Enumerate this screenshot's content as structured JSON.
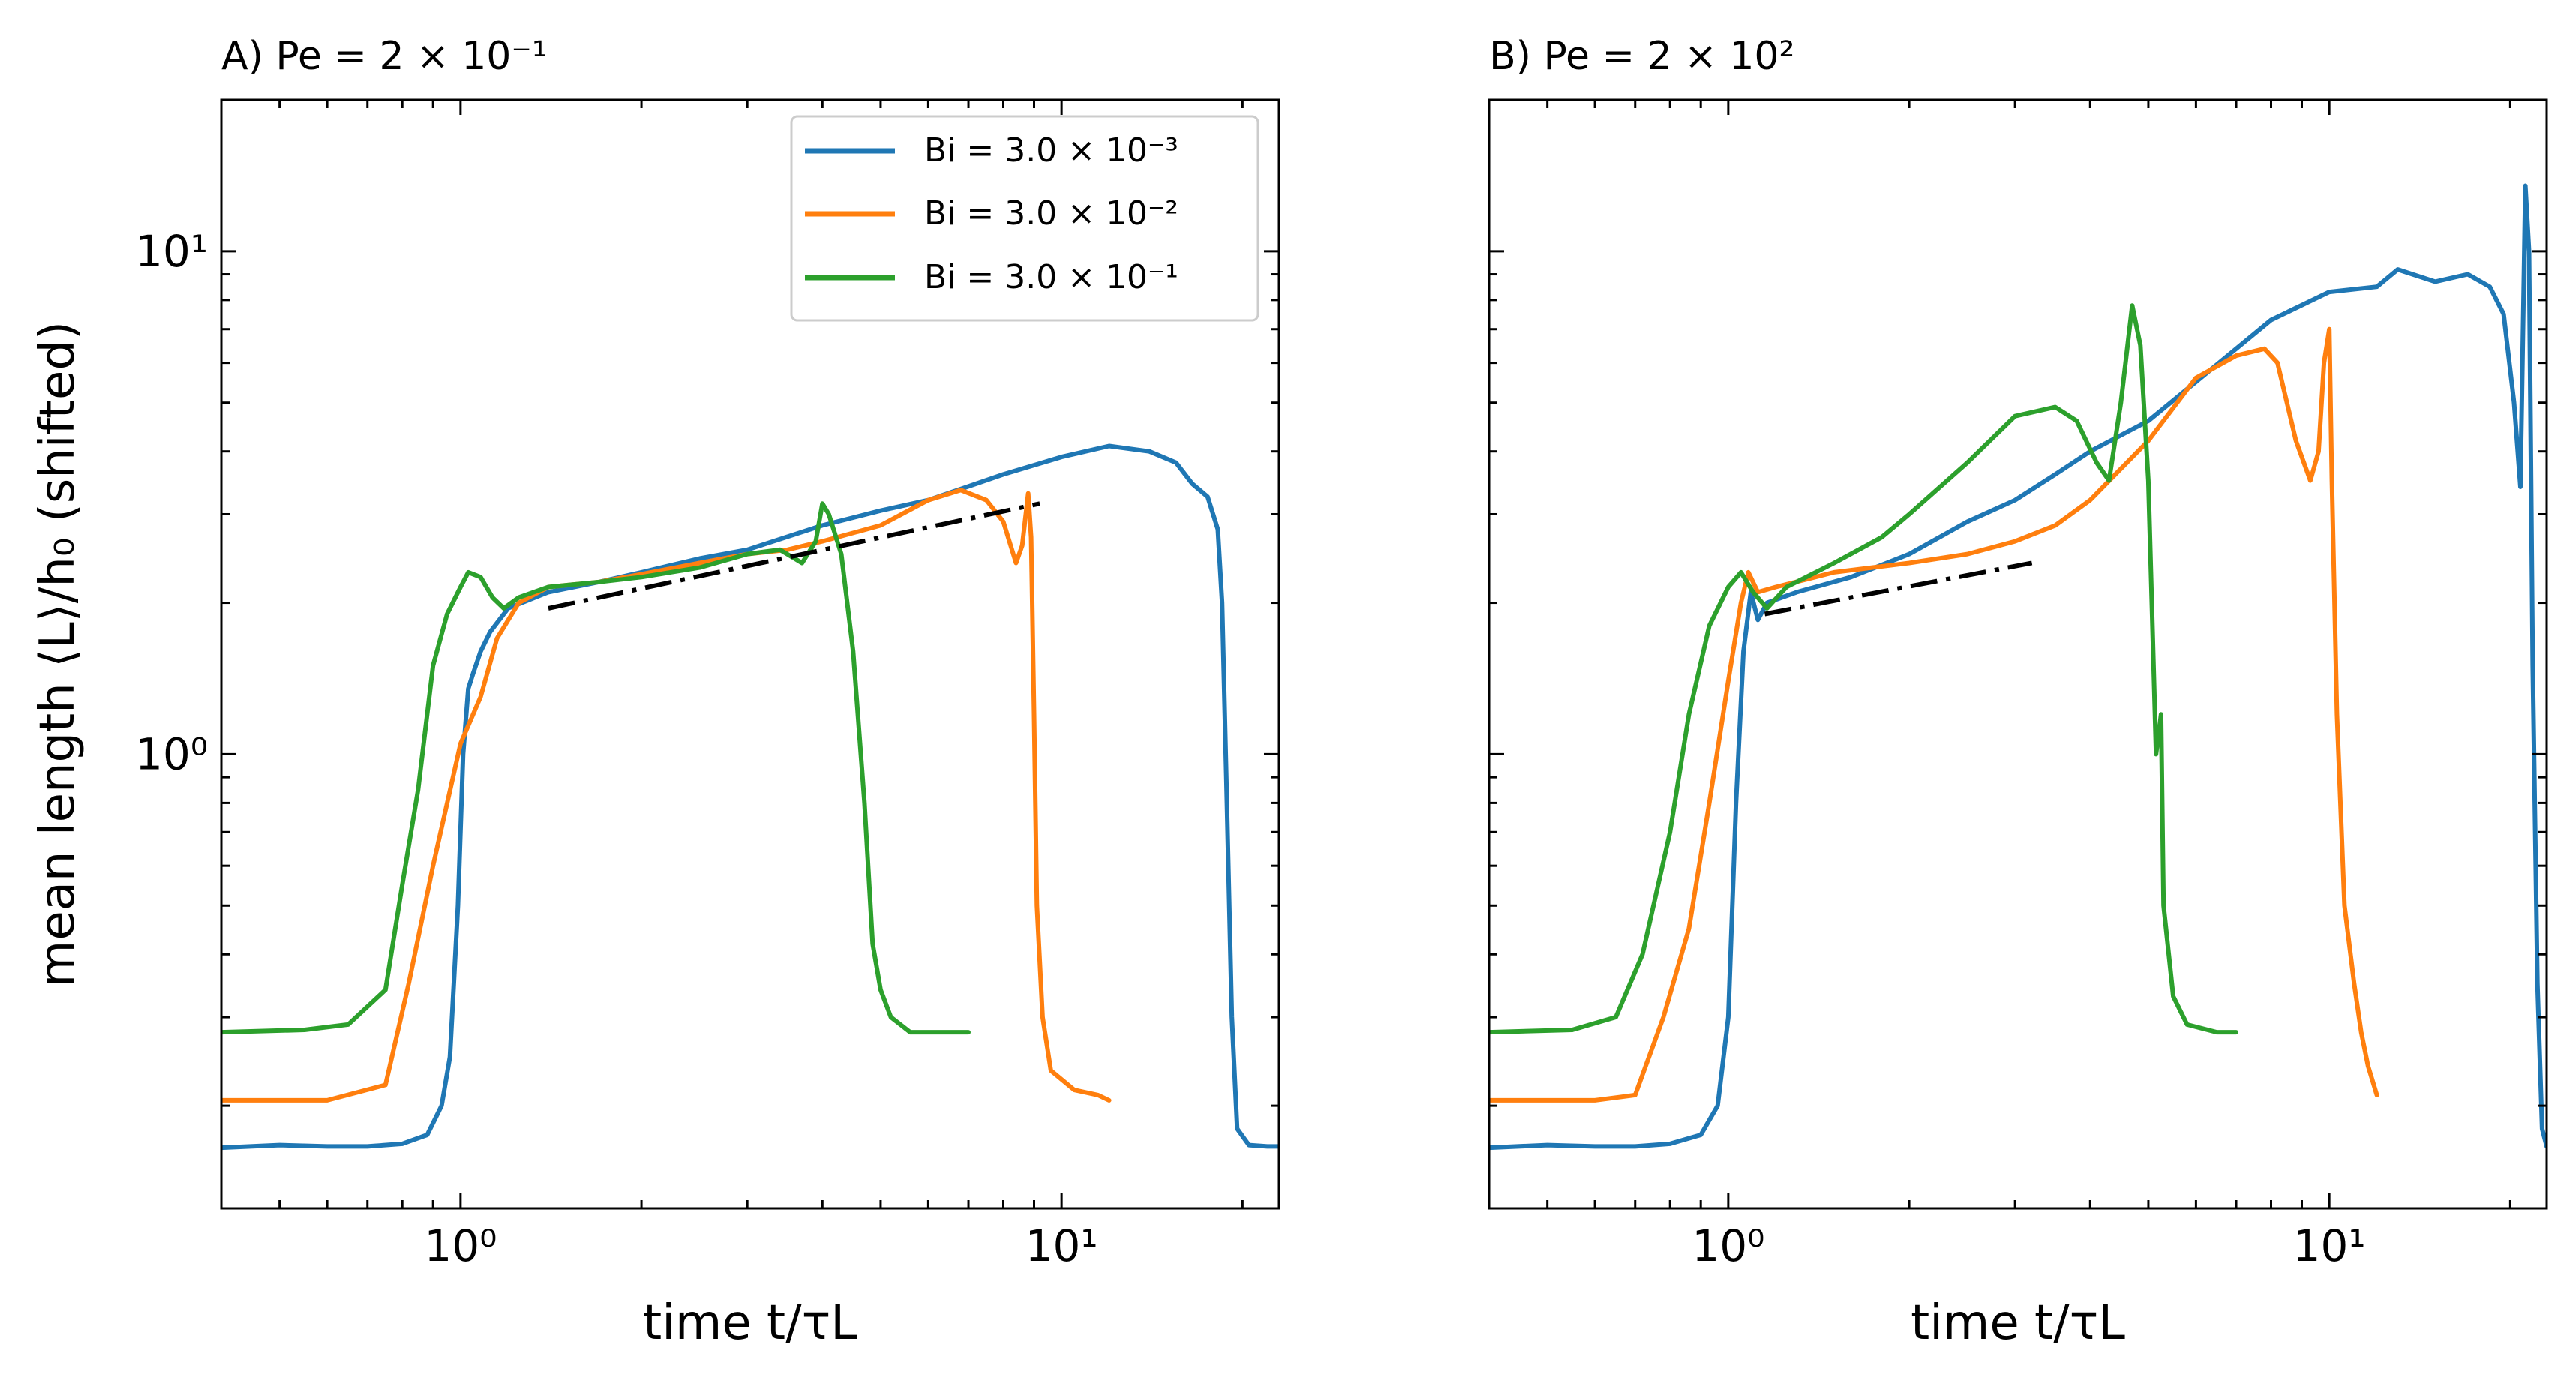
{
  "figure": {
    "shared_ylabel": "mean length ⟨L⟩/h₀ (shifted)",
    "legend": [
      "Bi = 3.0 × 10⁻³",
      "Bi = 3.0 × 10⁻²",
      "Bi = 3.0 × 10⁻¹"
    ]
  },
  "colors": {
    "series": [
      "#1f77b4",
      "#ff7f0e",
      "#2ca02c"
    ],
    "guide": "#000000"
  },
  "chart_data": [
    {
      "type": "line",
      "panel": "A",
      "title": "A) Pe = 2 × 10⁻¹",
      "xlabel": "time t/τL",
      "ylabel": "mean length ⟨L⟩/h₀ (shifted)",
      "xscale": "log",
      "yscale": "log",
      "xlim": [
        0.4,
        23
      ],
      "ylim": [
        0.125,
        20
      ],
      "xticks": [
        {
          "v": 1,
          "label": "10⁰"
        },
        {
          "v": 10,
          "label": "10¹"
        }
      ],
      "yticks": [
        {
          "v": 1,
          "label": "10⁰"
        },
        {
          "v": 10,
          "label": "10¹"
        }
      ],
      "legend_loc": "upper right",
      "series": [
        {
          "name": "Bi = 3.0 × 10⁻³",
          "points": [
            [
              0.4,
              0.165
            ],
            [
              0.5,
              0.167
            ],
            [
              0.6,
              0.166
            ],
            [
              0.7,
              0.166
            ],
            [
              0.8,
              0.168
            ],
            [
              0.88,
              0.175
            ],
            [
              0.93,
              0.2
            ],
            [
              0.96,
              0.25
            ],
            [
              0.99,
              0.5
            ],
            [
              1.01,
              1.0
            ],
            [
              1.03,
              1.35
            ],
            [
              1.05,
              1.45
            ],
            [
              1.08,
              1.6
            ],
            [
              1.12,
              1.75
            ],
            [
              1.2,
              1.95
            ],
            [
              1.4,
              2.1
            ],
            [
              1.7,
              2.2
            ],
            [
              2.0,
              2.3
            ],
            [
              2.5,
              2.45
            ],
            [
              3.0,
              2.55
            ],
            [
              4.0,
              2.85
            ],
            [
              5.0,
              3.05
            ],
            [
              6.0,
              3.2
            ],
            [
              8.0,
              3.6
            ],
            [
              10,
              3.9
            ],
            [
              12,
              4.1
            ],
            [
              14,
              4.0
            ],
            [
              15.5,
              3.8
            ],
            [
              16.5,
              3.45
            ],
            [
              17.5,
              3.25
            ],
            [
              18.2,
              2.8
            ],
            [
              18.5,
              2.0
            ],
            [
              18.8,
              0.9
            ],
            [
              19.2,
              0.3
            ],
            [
              19.6,
              0.18
            ],
            [
              20.5,
              0.167
            ],
            [
              22,
              0.166
            ],
            [
              23,
              0.166
            ]
          ]
        },
        {
          "name": "Bi = 3.0 × 10⁻²",
          "points": [
            [
              0.4,
              0.205
            ],
            [
              0.6,
              0.205
            ],
            [
              0.75,
              0.22
            ],
            [
              0.82,
              0.35
            ],
            [
              0.9,
              0.6
            ],
            [
              1.0,
              1.05
            ],
            [
              1.08,
              1.3
            ],
            [
              1.15,
              1.7
            ],
            [
              1.25,
              2.0
            ],
            [
              1.4,
              2.15
            ],
            [
              1.7,
              2.2
            ],
            [
              2.0,
              2.28
            ],
            [
              2.5,
              2.4
            ],
            [
              3.0,
              2.5
            ],
            [
              3.5,
              2.55
            ],
            [
              4.0,
              2.65
            ],
            [
              5.0,
              2.85
            ],
            [
              6.0,
              3.2
            ],
            [
              6.8,
              3.35
            ],
            [
              7.5,
              3.2
            ],
            [
              8.0,
              2.9
            ],
            [
              8.4,
              2.4
            ],
            [
              8.6,
              2.6
            ],
            [
              8.8,
              3.3
            ],
            [
              8.9,
              2.7
            ],
            [
              9.0,
              1.2
            ],
            [
              9.1,
              0.5
            ],
            [
              9.3,
              0.3
            ],
            [
              9.6,
              0.235
            ],
            [
              10.5,
              0.215
            ],
            [
              11.5,
              0.21
            ],
            [
              12,
              0.205
            ]
          ]
        },
        {
          "name": "Bi = 3.0 × 10⁻¹",
          "points": [
            [
              0.4,
              0.28
            ],
            [
              0.55,
              0.283
            ],
            [
              0.65,
              0.29
            ],
            [
              0.75,
              0.34
            ],
            [
              0.8,
              0.55
            ],
            [
              0.85,
              0.85
            ],
            [
              0.9,
              1.5
            ],
            [
              0.95,
              1.9
            ],
            [
              1.0,
              2.15
            ],
            [
              1.03,
              2.3
            ],
            [
              1.08,
              2.25
            ],
            [
              1.13,
              2.05
            ],
            [
              1.18,
              1.95
            ],
            [
              1.25,
              2.05
            ],
            [
              1.4,
              2.15
            ],
            [
              1.7,
              2.2
            ],
            [
              2.0,
              2.25
            ],
            [
              2.5,
              2.35
            ],
            [
              3.0,
              2.5
            ],
            [
              3.4,
              2.55
            ],
            [
              3.7,
              2.4
            ],
            [
              3.9,
              2.65
            ],
            [
              4.0,
              3.15
            ],
            [
              4.1,
              3.0
            ],
            [
              4.3,
              2.5
            ],
            [
              4.5,
              1.6
            ],
            [
              4.7,
              0.8
            ],
            [
              4.85,
              0.42
            ],
            [
              5.0,
              0.34
            ],
            [
              5.2,
              0.3
            ],
            [
              5.6,
              0.28
            ],
            [
              6.2,
              0.28
            ],
            [
              7.0,
              0.28
            ]
          ]
        }
      ],
      "guide_line": {
        "style": "dash-dot",
        "points": [
          [
            1.4,
            1.95
          ],
          [
            9.2,
            3.15
          ]
        ]
      }
    },
    {
      "type": "line",
      "panel": "B",
      "title": "B) Pe = 2 × 10²",
      "xlabel": "time t/τL",
      "xscale": "log",
      "yscale": "log",
      "xlim": [
        0.4,
        23
      ],
      "ylim": [
        0.125,
        20
      ],
      "xticks": [
        {
          "v": 1,
          "label": "10⁰"
        },
        {
          "v": 10,
          "label": "10¹"
        }
      ],
      "series": [
        {
          "name": "Bi = 3.0 × 10⁻³",
          "points": [
            [
              0.4,
              0.165
            ],
            [
              0.5,
              0.167
            ],
            [
              0.6,
              0.166
            ],
            [
              0.7,
              0.166
            ],
            [
              0.8,
              0.168
            ],
            [
              0.9,
              0.175
            ],
            [
              0.96,
              0.2
            ],
            [
              1.0,
              0.3
            ],
            [
              1.03,
              0.8
            ],
            [
              1.06,
              1.6
            ],
            [
              1.09,
              2.1
            ],
            [
              1.12,
              1.85
            ],
            [
              1.16,
              2.0
            ],
            [
              1.3,
              2.1
            ],
            [
              1.6,
              2.25
            ],
            [
              2.0,
              2.5
            ],
            [
              2.5,
              2.9
            ],
            [
              3.0,
              3.2
            ],
            [
              3.5,
              3.6
            ],
            [
              4.0,
              4.0
            ],
            [
              5.0,
              4.6
            ],
            [
              6.0,
              5.5
            ],
            [
              7.0,
              6.4
            ],
            [
              8.0,
              7.3
            ],
            [
              10,
              8.3
            ],
            [
              12,
              8.5
            ],
            [
              13,
              9.2
            ],
            [
              15,
              8.7
            ],
            [
              17,
              9.0
            ],
            [
              18.5,
              8.5
            ],
            [
              19.5,
              7.5
            ],
            [
              20.3,
              5.0
            ],
            [
              20.8,
              3.4
            ],
            [
              21.2,
              13.5
            ],
            [
              21.5,
              10.0
            ],
            [
              21.8,
              1.5
            ],
            [
              22.2,
              0.35
            ],
            [
              22.6,
              0.18
            ],
            [
              23,
              0.166
            ]
          ]
        },
        {
          "name": "Bi = 3.0 × 10⁻²",
          "points": [
            [
              0.4,
              0.205
            ],
            [
              0.6,
              0.205
            ],
            [
              0.7,
              0.21
            ],
            [
              0.78,
              0.3
            ],
            [
              0.86,
              0.45
            ],
            [
              0.93,
              0.8
            ],
            [
              1.0,
              1.4
            ],
            [
              1.05,
              2.0
            ],
            [
              1.08,
              2.3
            ],
            [
              1.12,
              2.1
            ],
            [
              1.2,
              2.15
            ],
            [
              1.5,
              2.3
            ],
            [
              2.0,
              2.4
            ],
            [
              2.5,
              2.5
            ],
            [
              3.0,
              2.65
            ],
            [
              3.5,
              2.85
            ],
            [
              4.0,
              3.2
            ],
            [
              5.0,
              4.2
            ],
            [
              6.0,
              5.6
            ],
            [
              7.0,
              6.2
            ],
            [
              7.8,
              6.4
            ],
            [
              8.2,
              6.0
            ],
            [
              8.8,
              4.2
            ],
            [
              9.3,
              3.5
            ],
            [
              9.6,
              4.0
            ],
            [
              9.8,
              6.0
            ],
            [
              10.0,
              7.0
            ],
            [
              10.1,
              3.5
            ],
            [
              10.3,
              1.2
            ],
            [
              10.6,
              0.5
            ],
            [
              11.0,
              0.35
            ],
            [
              11.3,
              0.28
            ],
            [
              11.6,
              0.24
            ],
            [
              12.0,
              0.21
            ]
          ]
        },
        {
          "name": "Bi = 3.0 × 10⁻¹",
          "points": [
            [
              0.4,
              0.28
            ],
            [
              0.55,
              0.283
            ],
            [
              0.65,
              0.3
            ],
            [
              0.72,
              0.4
            ],
            [
              0.8,
              0.7
            ],
            [
              0.86,
              1.2
            ],
            [
              0.93,
              1.8
            ],
            [
              1.0,
              2.15
            ],
            [
              1.05,
              2.3
            ],
            [
              1.1,
              2.1
            ],
            [
              1.16,
              1.95
            ],
            [
              1.25,
              2.15
            ],
            [
              1.5,
              2.4
            ],
            [
              1.8,
              2.7
            ],
            [
              2.0,
              3.0
            ],
            [
              2.5,
              3.8
            ],
            [
              3.0,
              4.7
            ],
            [
              3.5,
              4.9
            ],
            [
              3.8,
              4.6
            ],
            [
              4.1,
              3.8
            ],
            [
              4.3,
              3.5
            ],
            [
              4.5,
              5.0
            ],
            [
              4.7,
              7.8
            ],
            [
              4.85,
              6.5
            ],
            [
              5.0,
              3.5
            ],
            [
              5.15,
              1.0
            ],
            [
              5.25,
              1.2
            ],
            [
              5.3,
              0.5
            ],
            [
              5.5,
              0.33
            ],
            [
              5.8,
              0.29
            ],
            [
              6.5,
              0.28
            ],
            [
              7.0,
              0.28
            ]
          ]
        }
      ],
      "guide_line": {
        "style": "dash-dot",
        "points": [
          [
            1.15,
            1.9
          ],
          [
            3.2,
            2.4
          ]
        ]
      }
    }
  ]
}
